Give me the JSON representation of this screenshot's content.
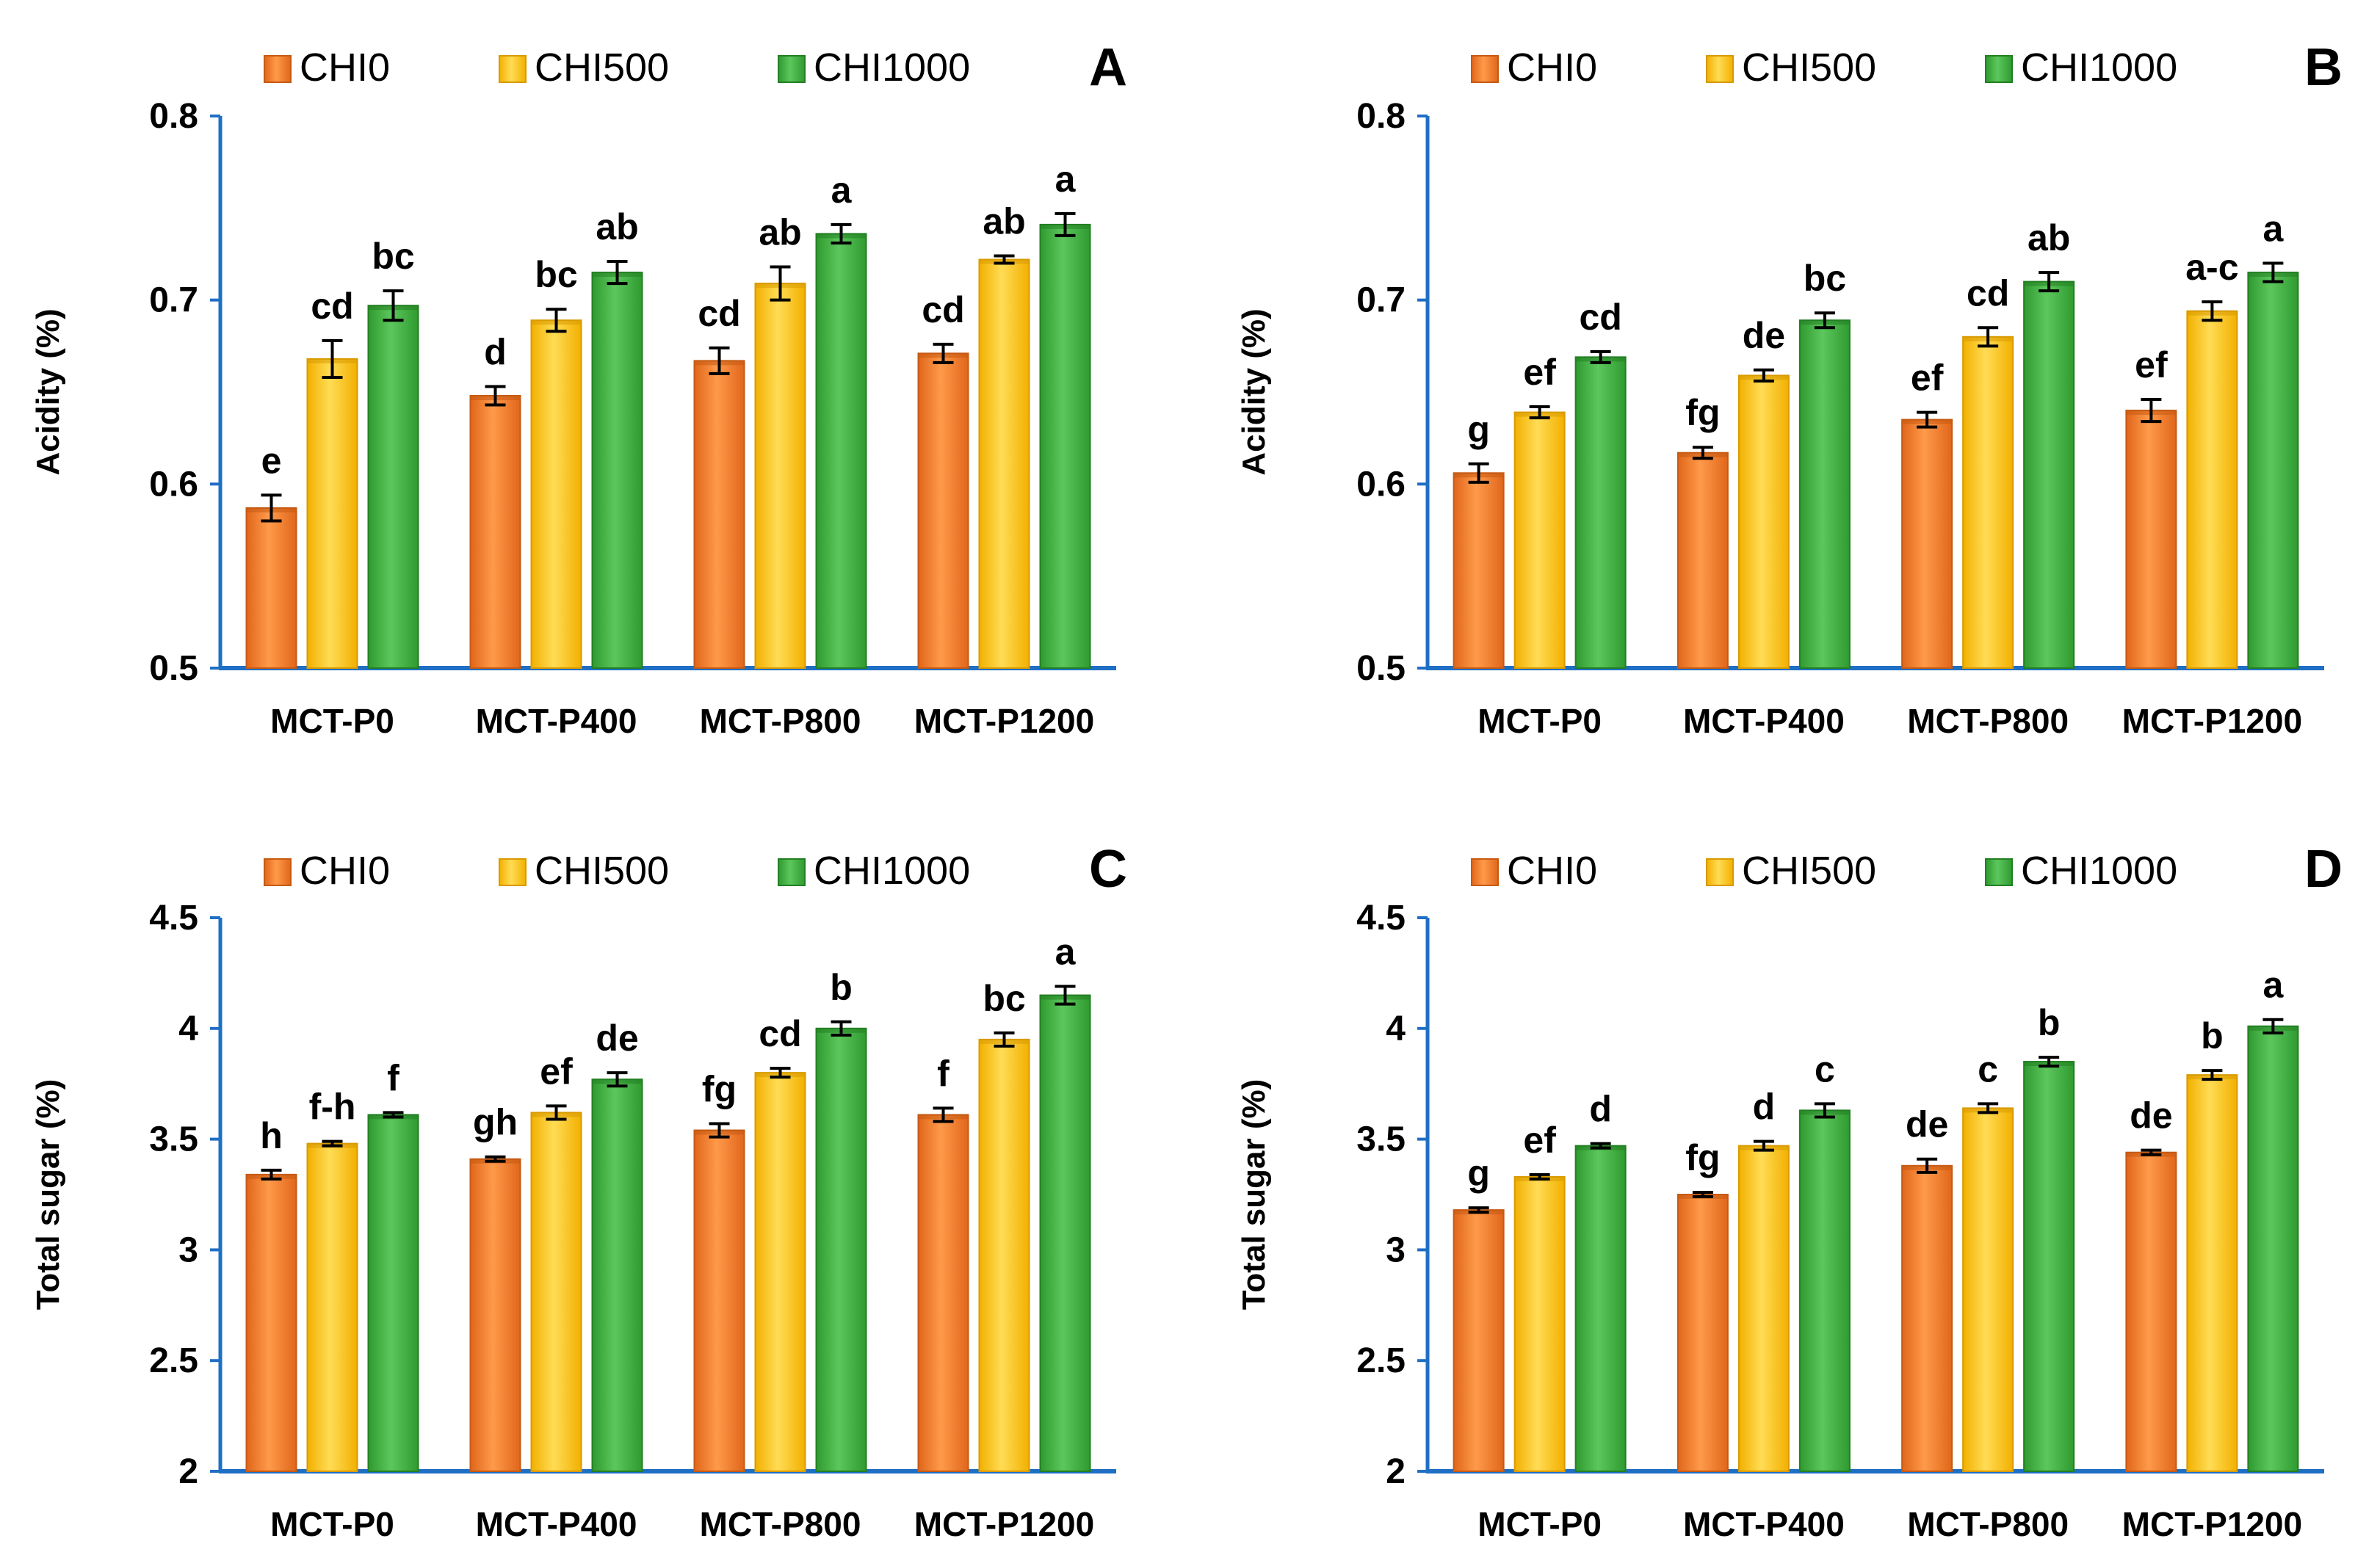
{
  "chart_data": [
    {
      "panel": "A",
      "type": "bar",
      "categories": [
        "MCT-P0",
        "MCT-P400",
        "MCT-P800",
        "MCT-P1200"
      ],
      "series": [
        {
          "name": "CHI0",
          "values": [
            0.587,
            0.648,
            0.667,
            0.671
          ],
          "errors": [
            0.007,
            0.005,
            0.007,
            0.005
          ],
          "letters": [
            "e",
            "d",
            "cd",
            "cd"
          ]
        },
        {
          "name": "CHI500",
          "values": [
            0.668,
            0.689,
            0.709,
            0.722
          ],
          "errors": [
            0.01,
            0.006,
            0.009,
            0.002
          ],
          "letters": [
            "cd",
            "bc",
            "ab",
            "ab"
          ]
        },
        {
          "name": "CHI1000",
          "values": [
            0.697,
            0.715,
            0.736,
            0.741
          ],
          "errors": [
            0.008,
            0.006,
            0.005,
            0.006
          ],
          "letters": [
            "bc",
            "ab",
            "a",
            "a"
          ]
        }
      ],
      "ylabel": "Acidity (%)",
      "ylim": [
        0.5,
        0.8
      ],
      "yticks": [
        "0.5",
        "0.6",
        "0.7",
        "0.8"
      ]
    },
    {
      "panel": "B",
      "type": "bar",
      "categories": [
        "MCT-P0",
        "MCT-P400",
        "MCT-P800",
        "MCT-P1200"
      ],
      "series": [
        {
          "name": "CHI0",
          "values": [
            0.606,
            0.617,
            0.635,
            0.64
          ],
          "errors": [
            0.005,
            0.003,
            0.004,
            0.006
          ],
          "letters": [
            "g",
            "fg",
            "ef",
            "ef"
          ]
        },
        {
          "name": "CHI500",
          "values": [
            0.639,
            0.659,
            0.68,
            0.694
          ],
          "errors": [
            0.003,
            0.003,
            0.005,
            0.005
          ],
          "letters": [
            "ef",
            "de",
            "cd",
            "a-c"
          ]
        },
        {
          "name": "CHI1000",
          "values": [
            0.669,
            0.689,
            0.71,
            0.715
          ],
          "errors": [
            0.003,
            0.004,
            0.005,
            0.005
          ],
          "letters": [
            "cd",
            "bc",
            "ab",
            "a"
          ]
        }
      ],
      "ylabel": "Acidity (%)",
      "ylim": [
        0.5,
        0.8
      ],
      "yticks": [
        "0.5",
        "0.6",
        "0.7",
        "0.8"
      ]
    },
    {
      "panel": "C",
      "type": "bar",
      "categories": [
        "MCT-P0",
        "MCT-P400",
        "MCT-P800",
        "MCT-P1200"
      ],
      "series": [
        {
          "name": "CHI0",
          "values": [
            3.34,
            3.41,
            3.54,
            3.61
          ],
          "errors": [
            0.02,
            0.01,
            0.03,
            0.03
          ],
          "letters": [
            "h",
            "gh",
            "fg",
            "f"
          ]
        },
        {
          "name": "CHI500",
          "values": [
            3.48,
            3.62,
            3.8,
            3.95
          ],
          "errors": [
            0.01,
            0.03,
            0.02,
            0.03
          ],
          "letters": [
            "f-h",
            "ef",
            "cd",
            "bc"
          ]
        },
        {
          "name": "CHI1000",
          "values": [
            3.61,
            3.77,
            4.0,
            4.15
          ],
          "errors": [
            0.01,
            0.03,
            0.03,
            0.04
          ],
          "letters": [
            "f",
            "de",
            "b",
            "a"
          ]
        }
      ],
      "ylabel": "Total sugar (%)",
      "ylim": [
        2,
        4.5
      ],
      "yticks": [
        "2",
        "2.5",
        "3",
        "3.5",
        "4",
        "4.5"
      ]
    },
    {
      "panel": "D",
      "type": "bar",
      "categories": [
        "MCT-P0",
        "MCT-P400",
        "MCT-P800",
        "MCT-P1200"
      ],
      "series": [
        {
          "name": "CHI0",
          "values": [
            3.18,
            3.25,
            3.38,
            3.44
          ],
          "errors": [
            0.01,
            0.01,
            0.03,
            0.01
          ],
          "letters": [
            "g",
            "fg",
            "de",
            "de"
          ]
        },
        {
          "name": "CHI500",
          "values": [
            3.33,
            3.47,
            3.64,
            3.79
          ],
          "errors": [
            0.01,
            0.02,
            0.02,
            0.02
          ],
          "letters": [
            "ef",
            "d",
            "c",
            "b"
          ]
        },
        {
          "name": "CHI1000",
          "values": [
            3.47,
            3.63,
            3.85,
            4.01
          ],
          "errors": [
            0.01,
            0.03,
            0.02,
            0.03
          ],
          "letters": [
            "d",
            "c",
            "b",
            "a"
          ]
        }
      ],
      "ylabel": "Total sugar (%)",
      "ylim": [
        2,
        4.5
      ],
      "yticks": [
        "2",
        "2.5",
        "3",
        "3.5",
        "4",
        "4.5"
      ]
    }
  ],
  "colors": {
    "CHI0": "#f47d2a",
    "CHI0_dark": "#c65a12",
    "CHI500": "#ffc51a",
    "CHI500_dark": "#d89a00",
    "CHI1000": "#3fae3f",
    "CHI1000_dark": "#237f23",
    "axis": "#1f6fc4",
    "text": "#000000"
  }
}
